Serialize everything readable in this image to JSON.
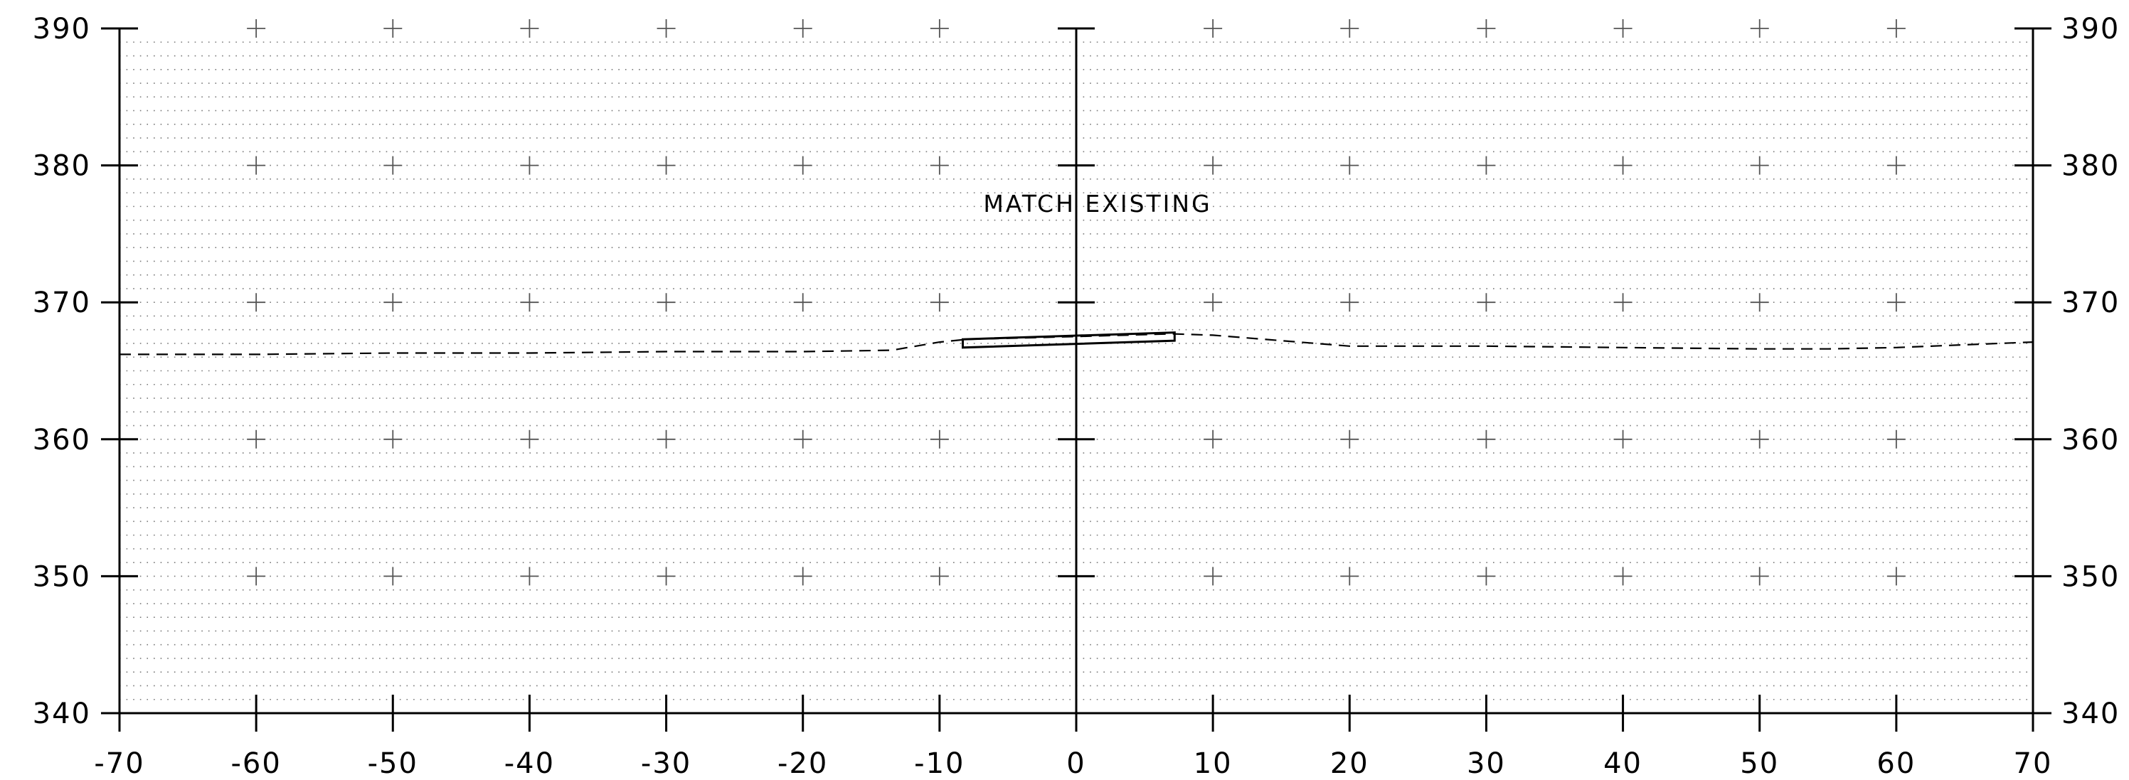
{
  "chart_data": {
    "type": "line",
    "title": "",
    "xlabel": "",
    "ylabel": "",
    "xlim": [
      -70,
      70
    ],
    "ylim": [
      340,
      390
    ],
    "x_ticks": [
      -70,
      -60,
      -50,
      -40,
      -30,
      -20,
      -10,
      0,
      10,
      20,
      30,
      40,
      50,
      60,
      70
    ],
    "x_tick_labels": [
      "-70",
      "-60",
      "-50",
      "-40",
      "-30",
      "-20",
      "-10",
      "0",
      "10",
      "20",
      "30",
      "40",
      "50",
      "60",
      "70"
    ],
    "y_ticks": [
      340,
      350,
      360,
      370,
      380,
      390
    ],
    "y_tick_labels": [
      "340",
      "350",
      "360",
      "370",
      "380",
      "390"
    ],
    "grid": "dotted",
    "series": [
      {
        "style": "dashed",
        "x": [
          -70,
          -60,
          -50,
          -40,
          -30,
          -20,
          -13.5,
          -10,
          -8,
          0,
          7,
          10,
          15,
          20,
          30,
          40,
          50,
          55,
          60,
          65,
          70
        ],
        "y": [
          366.2,
          366.2,
          366.3,
          366.3,
          366.4,
          366.4,
          366.5,
          367.1,
          367.3,
          367.5,
          367.7,
          367.6,
          367.2,
          366.8,
          366.8,
          366.7,
          366.6,
          366.6,
          366.7,
          366.9,
          367.1
        ]
      }
    ],
    "shapes": [
      {
        "type": "polygon",
        "x": [
          -8.3,
          7.2,
          7.2,
          -8.3
        ],
        "y": [
          367.3,
          367.8,
          367.2,
          366.7
        ]
      }
    ],
    "annotations": [
      {
        "text": "MATCH EXISTING",
        "x": -6.8,
        "y": 376.6
      }
    ]
  }
}
